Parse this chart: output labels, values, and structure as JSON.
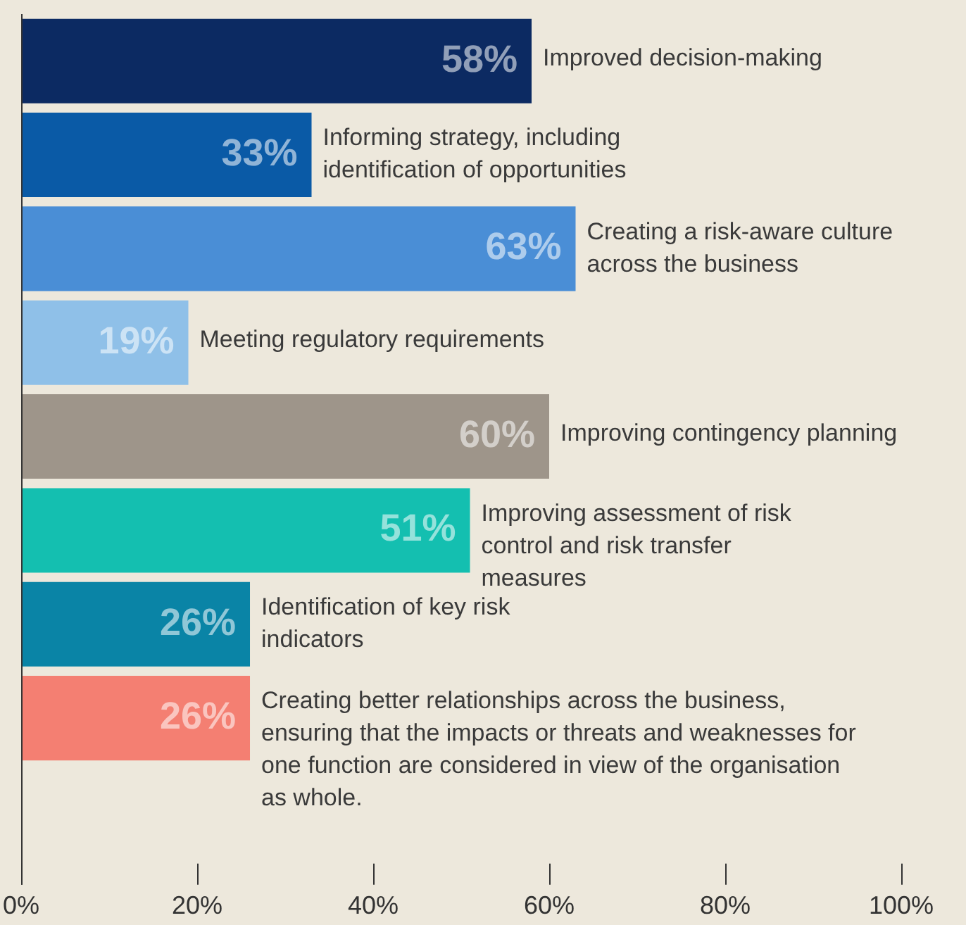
{
  "chart_data": {
    "type": "bar",
    "orientation": "horizontal",
    "categories": [
      "Improved decision-making",
      "Informing strategy, including identification of opportunities",
      "Creating a risk-aware culture across the business",
      "Meeting regulatory requirements",
      "Improving contingency planning",
      "Improving assessment of risk control and risk transfer measures",
      "Identification of key risk indicators",
      "Creating better relationships across the business, ensuring that the impacts or threats and weaknesses for one function are considered in view of the organisation as whole."
    ],
    "values": [
      58,
      33,
      63,
      19,
      60,
      51,
      26,
      26
    ],
    "colors": [
      "#0c2a62",
      "#0a5aa6",
      "#4a8ed6",
      "#8fc0e8",
      "#9e958a",
      "#14bfb0",
      "#0a84a6",
      "#f47f72"
    ],
    "value_labels": [
      "58%",
      "33%",
      "63%",
      "19%",
      "60%",
      "51%",
      "26%",
      "26%"
    ],
    "xlim": [
      0,
      100
    ],
    "xticks": [
      {
        "value": 0,
        "label": "0%"
      },
      {
        "value": 20,
        "label": "20%"
      },
      {
        "value": 40,
        "label": "40%"
      },
      {
        "value": 60,
        "label": "60%"
      },
      {
        "value": 80,
        "label": "80%"
      },
      {
        "value": 100,
        "label": "100%"
      }
    ],
    "grid": false,
    "legend": false
  }
}
